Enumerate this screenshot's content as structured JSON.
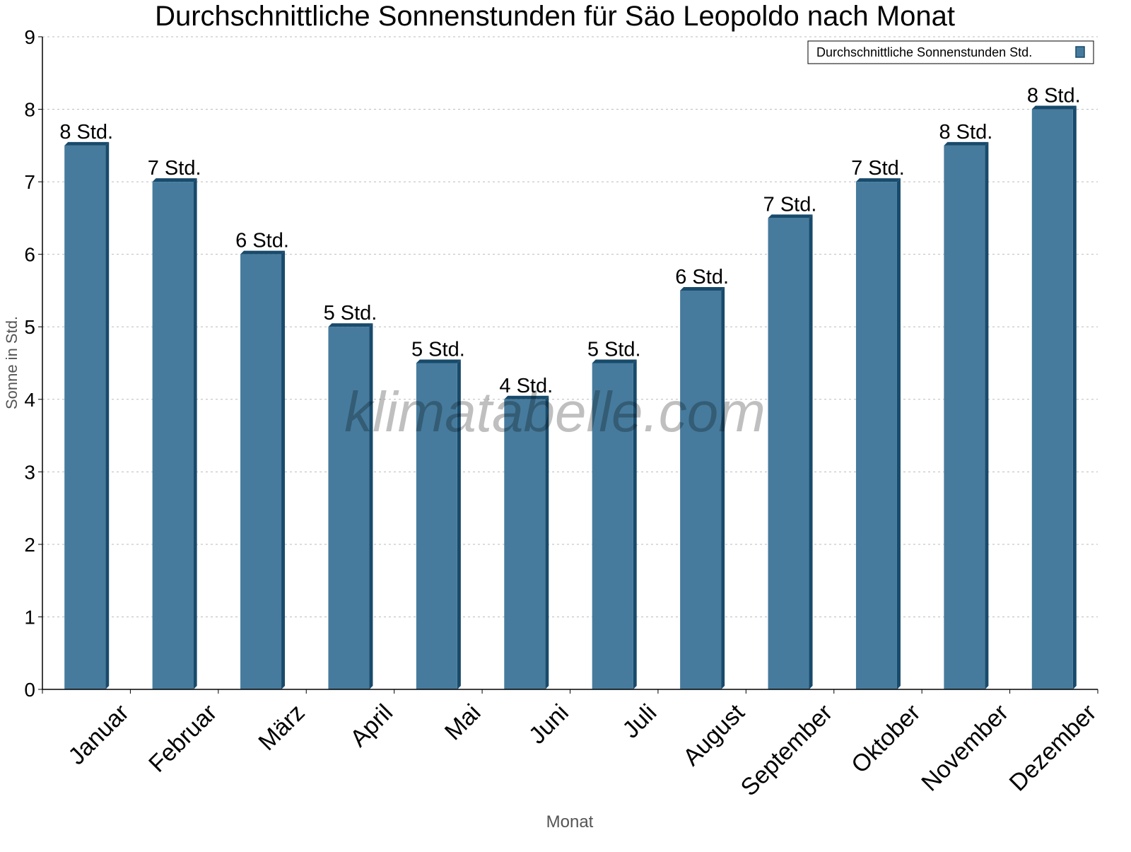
{
  "chart_data": {
    "type": "bar",
    "title": "Durchschnittliche Sonnenstunden für Säo Leopoldo nach Monat",
    "xlabel": "Monat",
    "ylabel": "Sonne in Std.",
    "ylim": [
      0,
      9
    ],
    "yticks": [
      "0",
      "1",
      "2",
      "3",
      "4",
      "5",
      "6",
      "7",
      "8",
      "9"
    ],
    "grid": true,
    "legend_position": "top-right",
    "categories": [
      "Januar",
      "Februar",
      "März",
      "April",
      "Mai",
      "Juni",
      "Juli",
      "August",
      "September",
      "Oktober",
      "November",
      "Dezember"
    ],
    "series": [
      {
        "name": "Durchschnittliche Sonnenstunden Std.",
        "color": "#467b9d",
        "side_color": "#184a6b",
        "values": [
          7.5,
          7,
          6,
          5,
          4.5,
          4,
          4.5,
          5.5,
          6.5,
          7,
          7.5,
          8
        ],
        "data_labels": [
          "8 Std.",
          "7 Std.",
          "6 Std.",
          "5 Std.",
          "5 Std.",
          "4 Std.",
          "5 Std.",
          "6 Std.",
          "7 Std.",
          "7 Std.",
          "8 Std.",
          "8 Std."
        ]
      }
    ],
    "watermark": "klimatabelle.com"
  }
}
